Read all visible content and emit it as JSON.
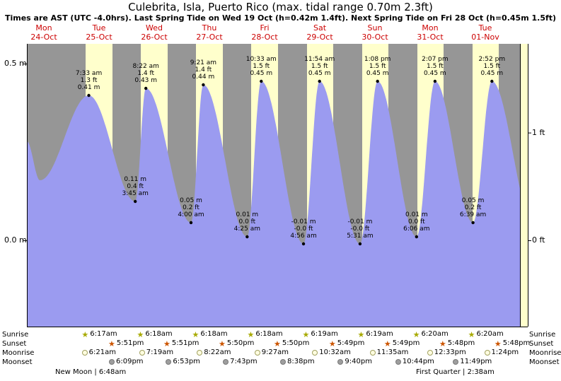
{
  "chart_data": {
    "type": "area",
    "title": "Culebrita, Isla, Puerto Rico (max. tidal range 0.70m 2.3ft)",
    "subtitle": "Times are AST (UTC -4.0hrs). Last Spring Tide on Wed 19 Oct (h=0.42m 1.4ft). Next Spring Tide on Fri 28 Oct (h=0.45m 1.5ft)",
    "y_range_m": [
      -0.24,
      0.56
    ],
    "y_axis": {
      "left_labels": [
        {
          "text": "0.5 m",
          "m": 0.5
        },
        {
          "text": "0.0 m",
          "m": 0.0
        }
      ],
      "right_labels": [
        {
          "text": "1 ft",
          "m": 0.3048
        },
        {
          "text": "0 ft",
          "m": 0.0
        }
      ]
    },
    "days": [
      {
        "name": "Mon",
        "date": "24-Oct"
      },
      {
        "name": "Tue",
        "date": "25-Oct"
      },
      {
        "name": "Wed",
        "date": "26-Oct"
      },
      {
        "name": "Thu",
        "date": "27-Oct"
      },
      {
        "name": "Fri",
        "date": "28-Oct"
      },
      {
        "name": "Sat",
        "date": "29-Oct"
      },
      {
        "name": "Sun",
        "date": "30-Oct"
      },
      {
        "name": "Mon",
        "date": "31-Oct"
      },
      {
        "name": "Tue",
        "date": "01-Nov"
      }
    ],
    "tide_events": [
      {
        "day": 1,
        "type": "high",
        "time": "7:33 am",
        "m": 0.41,
        "m_label": "0.41 m",
        "ft_label": "1.3 ft"
      },
      {
        "day": 2,
        "type": "low",
        "time": "3:45 am",
        "m": 0.11,
        "m_label": "0.11 m",
        "ft_label": "0.4 ft"
      },
      {
        "day": 2,
        "type": "high",
        "time": "8:22 am",
        "m": 0.43,
        "m_label": "0.43 m",
        "ft_label": "1.4 ft"
      },
      {
        "day": 3,
        "type": "low",
        "time": "4:00 am",
        "m": 0.05,
        "m_label": "0.05 m",
        "ft_label": "0.2 ft"
      },
      {
        "day": 3,
        "type": "high",
        "time": "9:21 am",
        "m": 0.44,
        "m_label": "0.44 m",
        "ft_label": "1.4 ft"
      },
      {
        "day": 4,
        "type": "low",
        "time": "4:25 am",
        "m": 0.01,
        "m_label": "0.01 m",
        "ft_label": "0.0 ft"
      },
      {
        "day": 4,
        "type": "high",
        "time": "10:33 am",
        "m": 0.45,
        "m_label": "0.45 m",
        "ft_label": "1.5 ft"
      },
      {
        "day": 5,
        "type": "low",
        "time": "4:56 am",
        "m": -0.01,
        "m_label": "-0.01 m",
        "ft_label": "-0.0 ft"
      },
      {
        "day": 5,
        "type": "high",
        "time": "11:54 am",
        "m": 0.45,
        "m_label": "0.45 m",
        "ft_label": "1.5 ft"
      },
      {
        "day": 6,
        "type": "low",
        "time": "5:31 am",
        "m": -0.01,
        "m_label": "-0.01 m",
        "ft_label": "-0.0 ft"
      },
      {
        "day": 6,
        "type": "high",
        "time": "1:08 pm",
        "m": 0.45,
        "m_label": "0.45 m",
        "ft_label": "1.5 ft"
      },
      {
        "day": 7,
        "type": "low",
        "time": "6:06 am",
        "m": 0.01,
        "m_label": "0.01 m",
        "ft_label": "0.0 ft"
      },
      {
        "day": 7,
        "type": "high",
        "time": "2:07 pm",
        "m": 0.45,
        "m_label": "0.45 m",
        "ft_label": "1.5 ft"
      },
      {
        "day": 8,
        "type": "low",
        "time": "6:39 am",
        "m": 0.05,
        "m_label": "0.05 m",
        "ft_label": "0.2 ft"
      },
      {
        "day": 8,
        "type": "high",
        "time": "2:52 pm",
        "m": 0.45,
        "m_label": "0.45 m",
        "ft_label": "1.5 ft"
      }
    ],
    "curve_anchors_start": [
      {
        "day": 0,
        "hour": 4.6,
        "m": 0.28
      },
      {
        "day": 0,
        "hour": 10.3,
        "m": 0.17
      }
    ],
    "curve_anchor_end": {
      "day": 9,
      "hour": 9.0,
      "m": 0.05
    },
    "astronomy": {
      "row_labels": {
        "sunrise": "Sunrise",
        "sunset": "Sunset",
        "moonrise": "Moonrise",
        "moonset": "Moonset"
      },
      "sunrise": [
        {
          "day": 1,
          "time": "6:17am"
        },
        {
          "day": 2,
          "time": "6:18am"
        },
        {
          "day": 3,
          "time": "6:18am"
        },
        {
          "day": 4,
          "time": "6:18am"
        },
        {
          "day": 5,
          "time": "6:19am"
        },
        {
          "day": 6,
          "time": "6:19am"
        },
        {
          "day": 7,
          "time": "6:20am"
        },
        {
          "day": 8,
          "time": "6:20am"
        }
      ],
      "sunset": [
        {
          "day": 1,
          "time": "5:51pm"
        },
        {
          "day": 2,
          "time": "5:51pm"
        },
        {
          "day": 3,
          "time": "5:50pm"
        },
        {
          "day": 4,
          "time": "5:50pm"
        },
        {
          "day": 5,
          "time": "5:49pm"
        },
        {
          "day": 6,
          "time": "5:49pm"
        },
        {
          "day": 7,
          "time": "5:48pm"
        },
        {
          "day": 8,
          "time": "5:48pm"
        }
      ],
      "moonrise": [
        {
          "day": 1,
          "time": "6:21am"
        },
        {
          "day": 2,
          "time": "7:19am"
        },
        {
          "day": 3,
          "time": "8:22am"
        },
        {
          "day": 4,
          "time": "9:27am"
        },
        {
          "day": 5,
          "time": "10:32am"
        },
        {
          "day": 6,
          "time": "11:35am"
        },
        {
          "day": 7,
          "time": "12:33pm"
        },
        {
          "day": 8,
          "time": "1:24pm"
        }
      ],
      "moonset": [
        {
          "day": 1,
          "time": "6:09pm"
        },
        {
          "day": 2,
          "time": "6:53pm"
        },
        {
          "day": 3,
          "time": "7:43pm"
        },
        {
          "day": 4,
          "time": "8:38pm"
        },
        {
          "day": 5,
          "time": "9:40pm"
        },
        {
          "day": 6,
          "time": "10:44pm"
        },
        {
          "day": 7,
          "time": "11:49pm"
        }
      ],
      "phase_notes": [
        {
          "text": "New Moon | 6:48am"
        },
        {
          "text": "First Quarter | 2:38am"
        }
      ]
    },
    "colors": {
      "night": "#969696",
      "day": "#ffffcc",
      "tide": "#9b9bf0",
      "day_label": "#cc0000",
      "sunrise_star": "#a8aa00",
      "sunset_star": "#cc5500"
    }
  }
}
